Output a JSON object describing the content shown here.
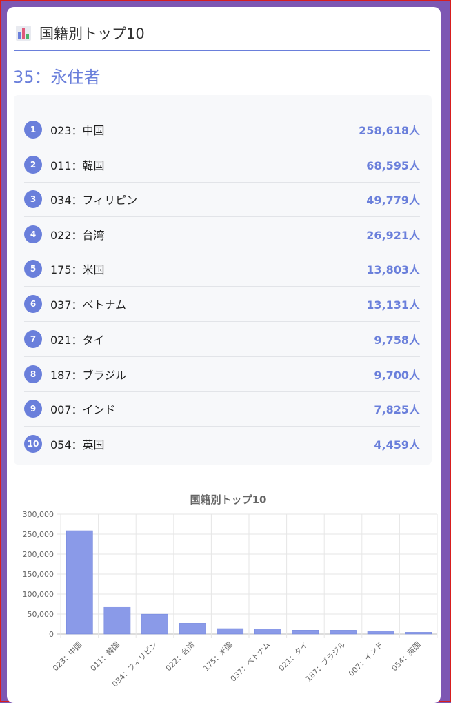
{
  "header": {
    "title": "国籍別トップ10",
    "icon": "bar-chart-icon"
  },
  "subtitle": "35：永住者",
  "colors": {
    "accent": "#6a7fdb",
    "bar": "#8a9ae8"
  },
  "ranking": [
    {
      "rank": "1",
      "name": "023：中国",
      "value": "258,618人"
    },
    {
      "rank": "2",
      "name": "011：韓国",
      "value": "68,595人"
    },
    {
      "rank": "3",
      "name": "034：フィリピン",
      "value": "49,779人"
    },
    {
      "rank": "4",
      "name": "022：台湾",
      "value": "26,921人"
    },
    {
      "rank": "5",
      "name": "175：米国",
      "value": "13,803人"
    },
    {
      "rank": "6",
      "name": "037：ベトナム",
      "value": "13,131人"
    },
    {
      "rank": "7",
      "name": "021：タイ",
      "value": "9,758人"
    },
    {
      "rank": "8",
      "name": "187：ブラジル",
      "value": "9,700人"
    },
    {
      "rank": "9",
      "name": "007：インド",
      "value": "7,825人"
    },
    {
      "rank": "10",
      "name": "054：英国",
      "value": "4,459人"
    }
  ],
  "chart_data": {
    "type": "bar",
    "title": "国籍別トップ10",
    "categories": [
      "023：中国",
      "011：韓国",
      "034：フィリピン",
      "022：台湾",
      "175：米国",
      "037：ベトナム",
      "021：タイ",
      "187：ブラジル",
      "007：インド",
      "054：英国"
    ],
    "values": [
      258618,
      68595,
      49779,
      26921,
      13803,
      13131,
      9758,
      9700,
      7825,
      4459
    ],
    "yticks": [
      "300,000",
      "250,000",
      "200,000",
      "150,000",
      "100,000",
      "50,000",
      "0"
    ],
    "ylim": [
      0,
      300000
    ],
    "grid": true,
    "legend": "none"
  }
}
